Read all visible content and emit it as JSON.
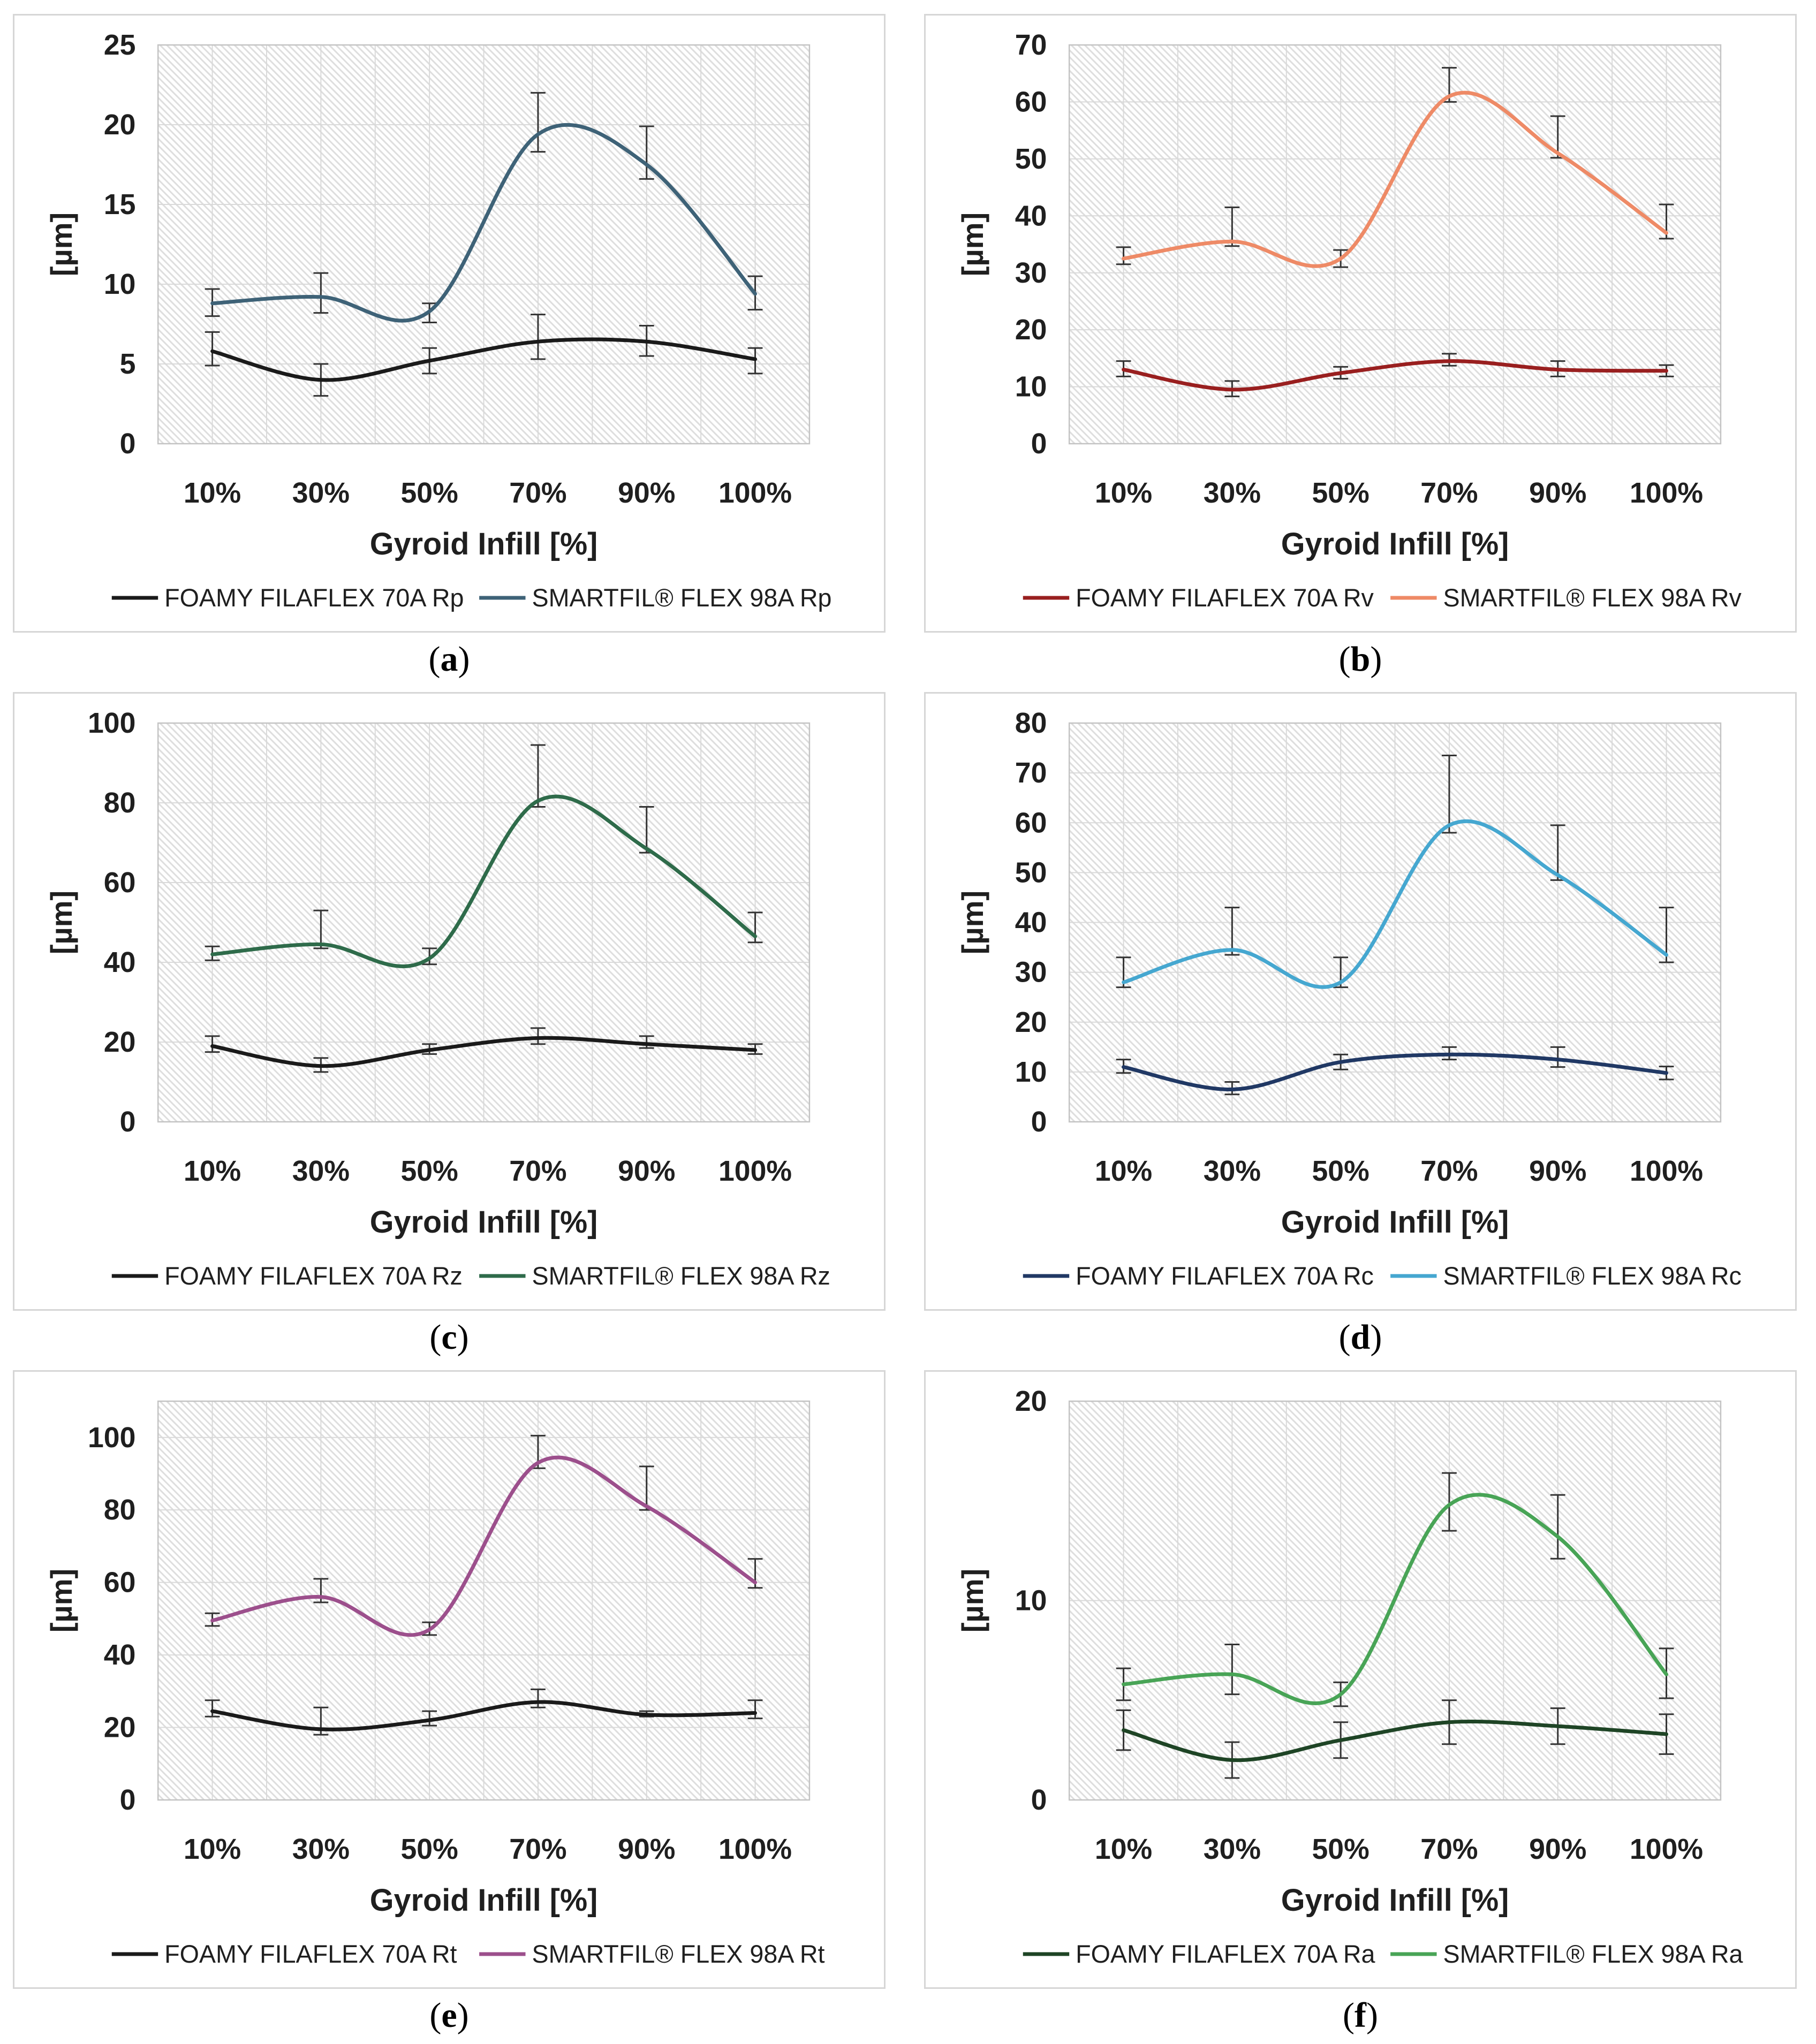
{
  "captions": {
    "prefix": "(",
    "suffix": ")"
  },
  "shared": {
    "xlabel": "Gyroid Infill [%]",
    "ylabel": "[µm]",
    "grid_color": "#d9d9d9",
    "hatch_color": "#dedede",
    "error_bar_color": "#333333"
  },
  "chart_data": [
    {
      "id": "a",
      "caption": "a",
      "type": "line",
      "title": "",
      "xlabel": "Gyroid Infill [%]",
      "ylabel": "[µm]",
      "categories": [
        "10%",
        "30%",
        "50%",
        "70%",
        "90%",
        "100%"
      ],
      "ylim": [
        0,
        25
      ],
      "yticks": [
        0,
        5,
        10,
        15,
        20,
        25
      ],
      "grid": true,
      "legend_position": "bottom",
      "series": [
        {
          "name": "FOAMY FILAFLEX 70A Rp",
          "color": "#1a1a1a",
          "values": [
            5.8,
            4.0,
            5.2,
            6.4,
            6.4,
            5.3
          ],
          "err_up": [
            1.2,
            1.0,
            0.8,
            1.7,
            1.0,
            0.7
          ],
          "err_down": [
            0.9,
            1.0,
            0.8,
            1.1,
            0.9,
            0.9
          ]
        },
        {
          "name": "SMARTFIL® FLEX 98A Rp",
          "color": "#3e6277",
          "values": [
            8.8,
            9.2,
            8.3,
            19.4,
            17.5,
            9.4
          ],
          "err_up": [
            0.9,
            1.5,
            0.5,
            2.6,
            2.4,
            1.1
          ],
          "err_down": [
            0.8,
            1.0,
            0.7,
            1.1,
            0.9,
            1.0
          ]
        }
      ]
    },
    {
      "id": "b",
      "caption": "b",
      "type": "line",
      "title": "",
      "xlabel": "Gyroid Infill [%]",
      "ylabel": "[µm]",
      "categories": [
        "10%",
        "30%",
        "50%",
        "70%",
        "90%",
        "100%"
      ],
      "ylim": [
        0,
        70
      ],
      "yticks": [
        0,
        10,
        20,
        30,
        40,
        50,
        60,
        70
      ],
      "grid": true,
      "legend_position": "bottom",
      "series": [
        {
          "name": "FOAMY FILAFLEX 70A Rv",
          "color": "#991f1f",
          "values": [
            13.0,
            9.5,
            12.4,
            14.5,
            13.0,
            12.8
          ],
          "err_up": [
            1.5,
            1.5,
            1.1,
            1.3,
            1.5,
            1.0
          ],
          "err_down": [
            1.2,
            1.2,
            1.0,
            0.8,
            1.2,
            1.0
          ]
        },
        {
          "name": "SMARTFIL® FLEX 98A Rv",
          "color": "#ee8a66",
          "values": [
            32.5,
            35.5,
            32.5,
            61.0,
            51.0,
            37.0
          ],
          "err_up": [
            2.0,
            6.0,
            1.5,
            5.0,
            6.5,
            5.0
          ],
          "err_down": [
            1.0,
            0.8,
            1.5,
            1.0,
            0.8,
            1.0
          ]
        }
      ]
    },
    {
      "id": "c",
      "caption": "c",
      "type": "line",
      "title": "",
      "xlabel": "Gyroid Infill [%]",
      "ylabel": "[µm]",
      "categories": [
        "10%",
        "30%",
        "50%",
        "70%",
        "90%",
        "100%"
      ],
      "ylim": [
        0,
        100
      ],
      "yticks": [
        0,
        20,
        40,
        60,
        80,
        100
      ],
      "grid": true,
      "legend_position": "bottom",
      "series": [
        {
          "name": "FOAMY FILAFLEX 70A Rz",
          "color": "#1a1a1a",
          "values": [
            19.0,
            14.0,
            18.0,
            21.0,
            19.5,
            18.0
          ],
          "err_up": [
            2.5,
            2.0,
            1.5,
            2.5,
            2.0,
            1.5
          ],
          "err_down": [
            1.5,
            1.5,
            1.0,
            1.5,
            1.0,
            1.0
          ]
        },
        {
          "name": "SMARTFIL® FLEX 98A Rz",
          "color": "#2e6b4a",
          "values": [
            42.0,
            44.5,
            41.0,
            80.5,
            68.5,
            46.5
          ],
          "err_up": [
            2.0,
            8.5,
            2.5,
            14.0,
            10.5,
            6.0
          ],
          "err_down": [
            1.5,
            1.0,
            1.5,
            1.5,
            1.0,
            1.5
          ]
        }
      ]
    },
    {
      "id": "d",
      "caption": "d",
      "type": "line",
      "title": "",
      "xlabel": "Gyroid Infill [%]",
      "ylabel": "[µm]",
      "categories": [
        "10%",
        "30%",
        "50%",
        "70%",
        "90%",
        "100%"
      ],
      "ylim": [
        0,
        80
      ],
      "yticks": [
        0,
        10,
        20,
        30,
        40,
        50,
        60,
        70,
        80
      ],
      "grid": true,
      "legend_position": "bottom",
      "series": [
        {
          "name": "FOAMY FILAFLEX 70A Rc",
          "color": "#203864",
          "values": [
            11.0,
            6.5,
            12.0,
            13.5,
            12.5,
            9.8
          ],
          "err_up": [
            1.5,
            1.5,
            1.5,
            1.5,
            2.5,
            1.3
          ],
          "err_down": [
            1.2,
            1.0,
            1.5,
            1.0,
            1.5,
            1.3
          ]
        },
        {
          "name": "SMARTFIL® FLEX 98A Rc",
          "color": "#45a7d0",
          "values": [
            28.0,
            34.5,
            28.0,
            59.5,
            49.5,
            33.5
          ],
          "err_up": [
            5.0,
            8.5,
            5.0,
            14.0,
            10.0,
            9.5
          ],
          "err_down": [
            1.0,
            1.0,
            1.0,
            1.5,
            1.0,
            1.5
          ]
        }
      ]
    },
    {
      "id": "e",
      "caption": "e",
      "type": "line",
      "title": "",
      "xlabel": "Gyroid Infill [%]",
      "ylabel": "[µm]",
      "categories": [
        "10%",
        "30%",
        "50%",
        "70%",
        "90%",
        "100%"
      ],
      "ylim": [
        0,
        110
      ],
      "yticks": [
        0,
        20,
        40,
        60,
        80,
        100
      ],
      "grid": true,
      "legend_position": "bottom",
      "series": [
        {
          "name": "FOAMY FILAFLEX 70A Rt",
          "color": "#1a1a1a",
          "values": [
            24.5,
            19.5,
            22.0,
            27.0,
            23.5,
            24.0
          ],
          "err_up": [
            3.0,
            6.0,
            2.5,
            3.5,
            1.0,
            3.5
          ],
          "err_down": [
            1.5,
            1.5,
            1.5,
            1.5,
            0.5,
            1.5
          ]
        },
        {
          "name": "SMARTFIL® FLEX 98A Rt",
          "color": "#9c4f8c",
          "values": [
            49.5,
            56.0,
            47.0,
            93.0,
            81.0,
            60.0
          ],
          "err_up": [
            2.0,
            5.0,
            2.0,
            7.5,
            11.0,
            6.5
          ],
          "err_down": [
            1.5,
            1.5,
            1.5,
            1.5,
            1.0,
            1.5
          ]
        }
      ]
    },
    {
      "id": "f",
      "caption": "f",
      "type": "line",
      "title": "",
      "xlabel": "Gyroid Infill [%]",
      "ylabel": "[µm]",
      "categories": [
        "10%",
        "30%",
        "50%",
        "70%",
        "90%",
        "100%"
      ],
      "ylim": [
        0,
        20
      ],
      "yticks": [
        0,
        10,
        20
      ],
      "grid": true,
      "legend_position": "bottom",
      "series": [
        {
          "name": "FOAMY FILAFLEX 70A Ra",
          "color": "#1e4425",
          "values": [
            3.5,
            2.0,
            3.0,
            3.9,
            3.7,
            3.3
          ],
          "err_up": [
            1.0,
            0.9,
            0.9,
            1.1,
            0.9,
            1.0
          ],
          "err_down": [
            1.0,
            0.9,
            0.9,
            1.1,
            0.9,
            1.0
          ]
        },
        {
          "name": "SMARTFIL® FLEX 98A Ra",
          "color": "#48a456",
          "values": [
            5.8,
            6.3,
            5.3,
            14.8,
            13.2,
            6.3
          ],
          "err_up": [
            0.8,
            1.5,
            0.6,
            1.6,
            2.1,
            1.3
          ],
          "err_down": [
            0.8,
            1.0,
            0.6,
            1.3,
            1.1,
            1.2
          ]
        }
      ]
    }
  ]
}
